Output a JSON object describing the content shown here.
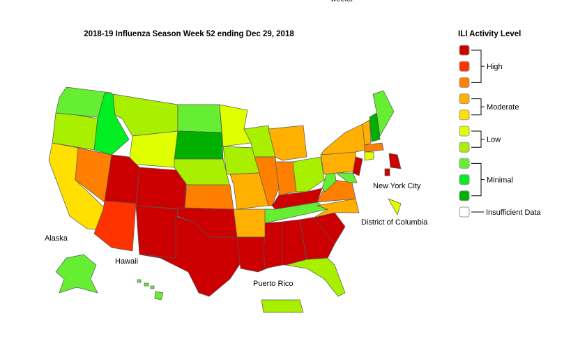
{
  "header": {
    "cut_text": "weeks",
    "title": "2018-19 Influenza Season Week 52 ending Dec 29, 2018"
  },
  "legend": {
    "title": "ILI Activity Level",
    "swatches": [
      "#cc0000",
      "#ff3300",
      "#ff7f00",
      "#ffb000",
      "#ffe000",
      "#e0ff00",
      "#a8f000",
      "#66ee33",
      "#00ee22",
      "#00b000",
      "#ffffff"
    ],
    "groups": [
      {
        "label": "High",
        "from": 0,
        "to": 2
      },
      {
        "label": "Moderate",
        "from": 3,
        "to": 4
      },
      {
        "label": "Low",
        "from": 5,
        "to": 6
      },
      {
        "label": "Minimal",
        "from": 7,
        "to": 9
      }
    ],
    "insufficient": "Insufficient Data"
  },
  "map_labels": {
    "alaska": "Alaska",
    "hawaii": "Hawaii",
    "puerto_rico": "Puerto Rico",
    "nyc": "New York City",
    "dc": "District of Columbia"
  }
}
